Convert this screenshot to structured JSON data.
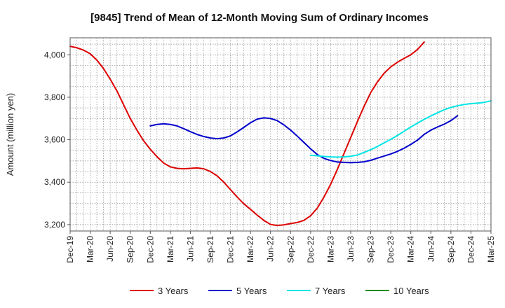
{
  "chart_data": {
    "type": "line",
    "title": "[9845]  Trend of Mean of 12-Month Moving Sum of Ordinary Incomes",
    "xlabel": "",
    "ylabel": "Amount (million yen)",
    "ylim": [
      3170,
      4080
    ],
    "yticks": [
      3200,
      3400,
      3600,
      3800,
      4000
    ],
    "ytick_labels": [
      "3,200",
      "3,400",
      "3,600",
      "3,800",
      "4,000"
    ],
    "x_categories": [
      "Dec-19",
      "Mar-20",
      "Jun-20",
      "Sep-20",
      "Dec-20",
      "Mar-21",
      "Jun-21",
      "Sep-21",
      "Dec-21",
      "Mar-22",
      "Jun-22",
      "Sep-22",
      "Dec-22",
      "Mar-23",
      "Jun-23",
      "Sep-23",
      "Dec-23",
      "Mar-24",
      "Jun-24",
      "Sep-24",
      "Dec-24",
      "Mar-25"
    ],
    "grid": true,
    "legend_position": "bottom",
    "series": [
      {
        "name": "3 Years",
        "color": "#dd0000",
        "start_index": 0,
        "values": [
          4040,
          4033,
          4022,
          4005,
          3975,
          3935,
          3885,
          3830,
          3765,
          3700,
          3645,
          3595,
          3555,
          3520,
          3490,
          3472,
          3465,
          3463,
          3465,
          3467,
          3463,
          3450,
          3430,
          3400,
          3365,
          3330,
          3298,
          3272,
          3245,
          3220,
          3201,
          3196,
          3199,
          3205,
          3210,
          3220,
          3242,
          3278,
          3330,
          3390,
          3460,
          3535,
          3610,
          3685,
          3757,
          3822,
          3872,
          3913,
          3943,
          3965,
          3983,
          4000,
          4025,
          4060
        ]
      },
      {
        "name": "5 Years",
        "color": "#0000cc",
        "start_index": 12,
        "values": [
          3665,
          3672,
          3675,
          3672,
          3665,
          3652,
          3638,
          3625,
          3615,
          3608,
          3605,
          3608,
          3618,
          3637,
          3658,
          3680,
          3697,
          3703,
          3700,
          3690,
          3670,
          3645,
          3617,
          3587,
          3557,
          3530,
          3512,
          3502,
          3495,
          3493,
          3492,
          3493,
          3496,
          3503,
          3513,
          3523,
          3533,
          3545,
          3560,
          3578,
          3598,
          3625,
          3645,
          3660,
          3673,
          3690,
          3713
        ]
      },
      {
        "name": "7 Years",
        "color": "#00e5e5",
        "start_index": 36,
        "values": [
          3527,
          3524,
          3521,
          3519,
          3518,
          3519,
          3522,
          3528,
          3540,
          3553,
          3568,
          3585,
          3602,
          3620,
          3640,
          3660,
          3678,
          3696,
          3712,
          3727,
          3741,
          3752,
          3760,
          3766,
          3770,
          3772,
          3776,
          3783
        ]
      },
      {
        "name": "10 Years",
        "color": "#228b22",
        "start_index": 0,
        "values": []
      }
    ]
  }
}
